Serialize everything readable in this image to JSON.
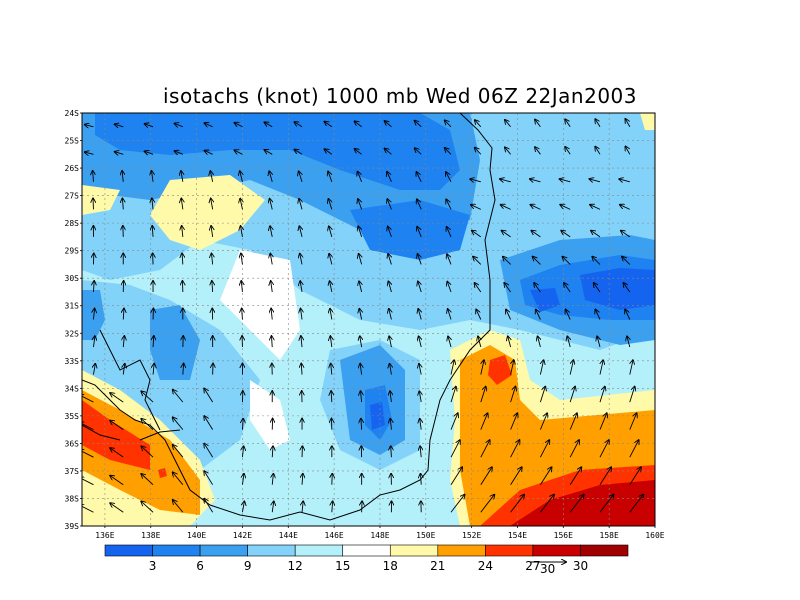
{
  "title": "isotachs (knot) 1000 mb Wed 06Z 22Jan2003",
  "lat_labels": [
    "24S",
    "25S",
    "26S",
    "27S",
    "28S",
    "29S",
    "30S",
    "31S",
    "32S",
    "33S",
    "34S",
    "35S",
    "36S",
    "37S",
    "38S",
    "39S"
  ],
  "lon_labels": [
    "136E",
    "138E",
    "140E",
    "142E",
    "144E",
    "146E",
    "148E",
    "150E",
    "152E",
    "154E",
    "156E",
    "158E",
    "160E"
  ],
  "colorbar": {
    "levels": [
      "3",
      "6",
      "9",
      "12",
      "15",
      "18",
      "21",
      "24",
      "27",
      "30"
    ],
    "colors": [
      "#1464f0",
      "#1e82f0",
      "#3ca0f0",
      "#82d2fa",
      "#b4f0fa",
      "#ffffff",
      "#fffaaa",
      "#ffa000",
      "#ff3200",
      "#c80000",
      "#a00000"
    ]
  },
  "vector_ref": {
    "label": "30"
  },
  "regions": {
    "blue_lows": [
      "north of 26S 136E-152E",
      "31S 155E",
      "35S 148E",
      "31S 140E"
    ],
    "high_winds": [
      "35S-37S 136E-140E",
      "33S 153E",
      "38S-39S 154E-160E"
    ]
  }
}
